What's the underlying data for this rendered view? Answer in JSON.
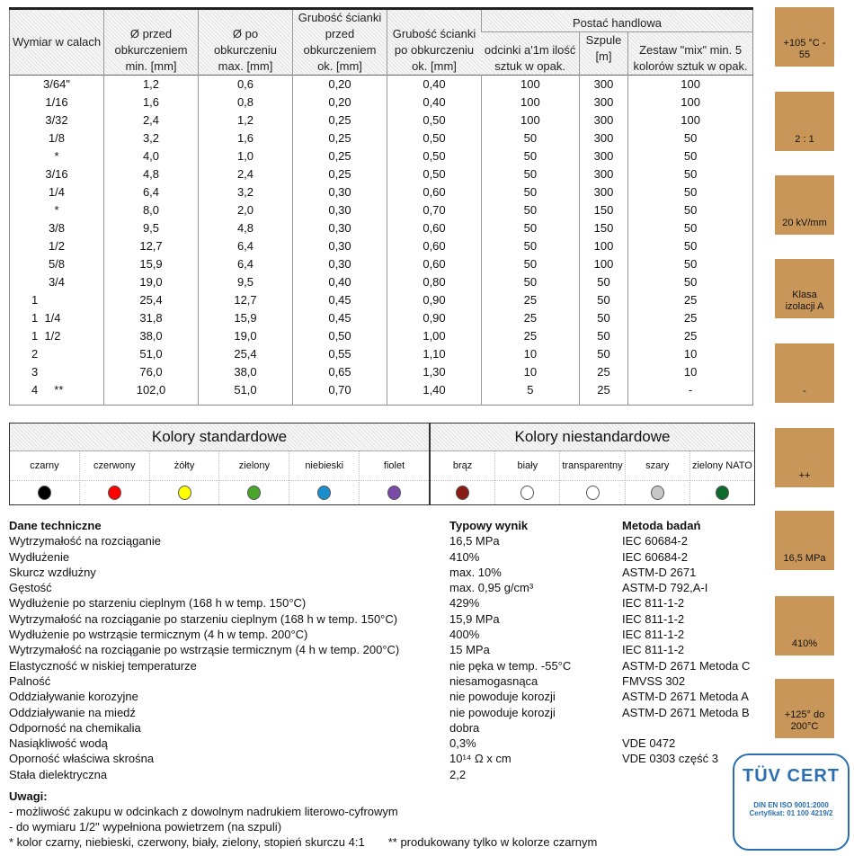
{
  "table": {
    "headers": {
      "wymiar": "Wymiar w calach",
      "przed": "Ø przed obkurczeniem min. [mm]",
      "po": "Ø po obkurczeniu max. [mm]",
      "grub_przed": "Grubość ścianki przed obkurczeniem ok. [mm]",
      "grub_po": "Grubość ścianki po obkurczeniu ok. [mm]",
      "postac": "Postać handlowa",
      "odcinki": "odcinki a'1m ilość sztuk w opak.",
      "szpule": "Szpule [m]",
      "zestaw": "Zestaw \"mix\" min. 5 kolorów sztuk w opak."
    },
    "rows": [
      [
        "3/64\"",
        "1,2",
        "0,6",
        "0,20",
        "0,40",
        "100",
        "300",
        "100"
      ],
      [
        "1/16",
        "1,6",
        "0,8",
        "0,20",
        "0,40",
        "100",
        "300",
        "100"
      ],
      [
        "3/32",
        "2,4",
        "1,2",
        "0,25",
        "0,50",
        "100",
        "300",
        "100"
      ],
      [
        "1/8",
        "3,2",
        "1,6",
        "0,25",
        "0,50",
        "50",
        "300",
        "50"
      ],
      [
        "*",
        "4,0",
        "1,0",
        "0,25",
        "0,50",
        "50",
        "300",
        "50"
      ],
      [
        "3/16",
        "4,8",
        "2,4",
        "0,25",
        "0,50",
        "50",
        "300",
        "50"
      ],
      [
        "1/4",
        "6,4",
        "3,2",
        "0,30",
        "0,60",
        "50",
        "300",
        "50"
      ],
      [
        "*",
        "8,0",
        "2,0",
        "0,30",
        "0,70",
        "50",
        "150",
        "50"
      ],
      [
        "3/8",
        "9,5",
        "4,8",
        "0,30",
        "0,60",
        "50",
        "150",
        "50"
      ],
      [
        "1/2",
        "12,7",
        "6,4",
        "0,30",
        "0,60",
        "50",
        "100",
        "50"
      ],
      [
        "5/8",
        "15,9",
        "6,4",
        "0,30",
        "0,60",
        "50",
        "100",
        "50"
      ],
      [
        "3/4",
        "19,0",
        "9,5",
        "0,40",
        "0,80",
        "50",
        "50",
        "50"
      ],
      [
        "1",
        "25,4",
        "12,7",
        "0,45",
        "0,90",
        "25",
        "50",
        "25"
      ],
      [
        "1  1/4",
        "31,8",
        "15,9",
        "0,45",
        "0,90",
        "25",
        "50",
        "25"
      ],
      [
        "1  1/2",
        "38,0",
        "19,0",
        "0,50",
        "1,00",
        "25",
        "50",
        "25"
      ],
      [
        "2",
        "51,0",
        "25,4",
        "0,55",
        "1,10",
        "10",
        "50",
        "10"
      ],
      [
        "3",
        "76,0",
        "38,0",
        "0,65",
        "1,30",
        "10",
        "25",
        "10"
      ],
      [
        "4     **",
        "102,0",
        "51,0",
        "0,70",
        "1,40",
        "5",
        "25",
        "-"
      ]
    ]
  },
  "colors": {
    "standard_title": "Kolory standardowe",
    "nonstandard_title": "Kolory niestandardowe",
    "standard": [
      {
        "name": "czarny",
        "hex": "#000000"
      },
      {
        "name": "czerwony",
        "hex": "#ff0000"
      },
      {
        "name": "żółty",
        "hex": "#ffff00"
      },
      {
        "name": "zielony",
        "hex": "#4aa52a"
      },
      {
        "name": "niebieski",
        "hex": "#1a8fd0"
      },
      {
        "name": "fiolet",
        "hex": "#7a4aa8"
      }
    ],
    "nonstandard": [
      {
        "name": "brąz",
        "hex": "#8a1a14"
      },
      {
        "name": "biały",
        "hex": "#ffffff"
      },
      {
        "name": "transparentny",
        "hex": "#ffffff"
      },
      {
        "name": "szary",
        "hex": "#c8c8c8"
      },
      {
        "name": "zielony NATO",
        "hex": "#0e6a2a"
      }
    ]
  },
  "tech": {
    "header": [
      "Dane techniczne",
      "Typowy wynik",
      "Metoda badań"
    ],
    "rows": [
      [
        "Wytrzymałość na rozciąganie",
        "16,5 MPa",
        "IEC 60684-2"
      ],
      [
        "Wydłużenie",
        "410%",
        "IEC 60684-2"
      ],
      [
        "Skurcz wzdłużny",
        "max. 10%",
        "ASTM-D 2671"
      ],
      [
        "Gęstość",
        "max. 0,95 g/cm³",
        "ASTM-D 792,A-I"
      ],
      [
        "Wydłużenie po starzeniu cieplnym (168 h w temp. 150°C)",
        "429%",
        "IEC 811-1-2"
      ],
      [
        "Wytrzymałość na rozciąganie po starzeniu cieplnym (168 h w temp. 150°C)",
        "15,9 MPa",
        "IEC 811-1-2"
      ],
      [
        "Wydłużenie po wstrząsie termicznym (4 h w temp. 200°C)",
        "400%",
        "IEC 811-1-2"
      ],
      [
        "Wytrzymałość na rozciąganie po wstrząsie termicznym (4 h w temp. 200°C)",
        "15 MPa",
        "IEC 811-1-2"
      ],
      [
        "Elastyczność w niskiej temperaturze",
        "nie pęka w temp. -55°C",
        "ASTM-D 2671 Metoda C"
      ],
      [
        "Palność",
        "niesamogasnąca",
        "FMVSS 302"
      ],
      [
        "Oddziaływanie korozyjne",
        "nie powoduje korozji",
        "ASTM-D 2671 Metoda A"
      ],
      [
        "Oddziaływanie na miedź",
        "nie powoduje korozji",
        "ASTM-D 2671 Metoda B"
      ],
      [
        "Odporność na chemikalia",
        "dobra",
        ""
      ],
      [
        "Nasiąkliwość wodą",
        "0,3%",
        "VDE 0472"
      ],
      [
        "Oporność właściwa skrośna",
        "10¹⁴ Ω x cm",
        "VDE 0303 część 3"
      ],
      [
        "Stała dielektryczna",
        "2,2",
        ""
      ]
    ]
  },
  "notes": {
    "title": "Uwagi:",
    "lines": [
      "- możliwość zakupu w odcinkach z dowolnym nadrukiem literowo-cyfrowym",
      "- do wymiaru 1/2\" wypełniona powietrzem (na szpuli)"
    ],
    "star": "* kolor czarny, niebieski, czerwony, biały, zielony, stopień skurczu 4:1",
    "dstar": "** produkowany tylko w kolorze czarnym"
  },
  "icons": [
    {
      "name": "temperature-icon",
      "text": "+105 °C - 55"
    },
    {
      "name": "shrink-ratio-icon",
      "text": "2 : 1"
    },
    {
      "name": "dielectric-strength-icon",
      "text": "20 kV/mm"
    },
    {
      "name": "insulation-class-icon",
      "text": "Klasa izolacji A"
    },
    {
      "name": "flame-icon",
      "text": "-"
    },
    {
      "name": "chemical-resistance-icon",
      "text": "++"
    },
    {
      "name": "tensile-strength-icon",
      "text": "16,5 MPa"
    },
    {
      "name": "elongation-icon",
      "text": "410%"
    },
    {
      "name": "heat-shock-icon",
      "text": "+125° do 200°C"
    }
  ],
  "cert": {
    "logo": "TÜV CERT",
    "line1": "DIN EN ISO 9001:2000",
    "line2": "Certyfikat: 01 100 4219/2"
  },
  "accent": "#c9965a"
}
